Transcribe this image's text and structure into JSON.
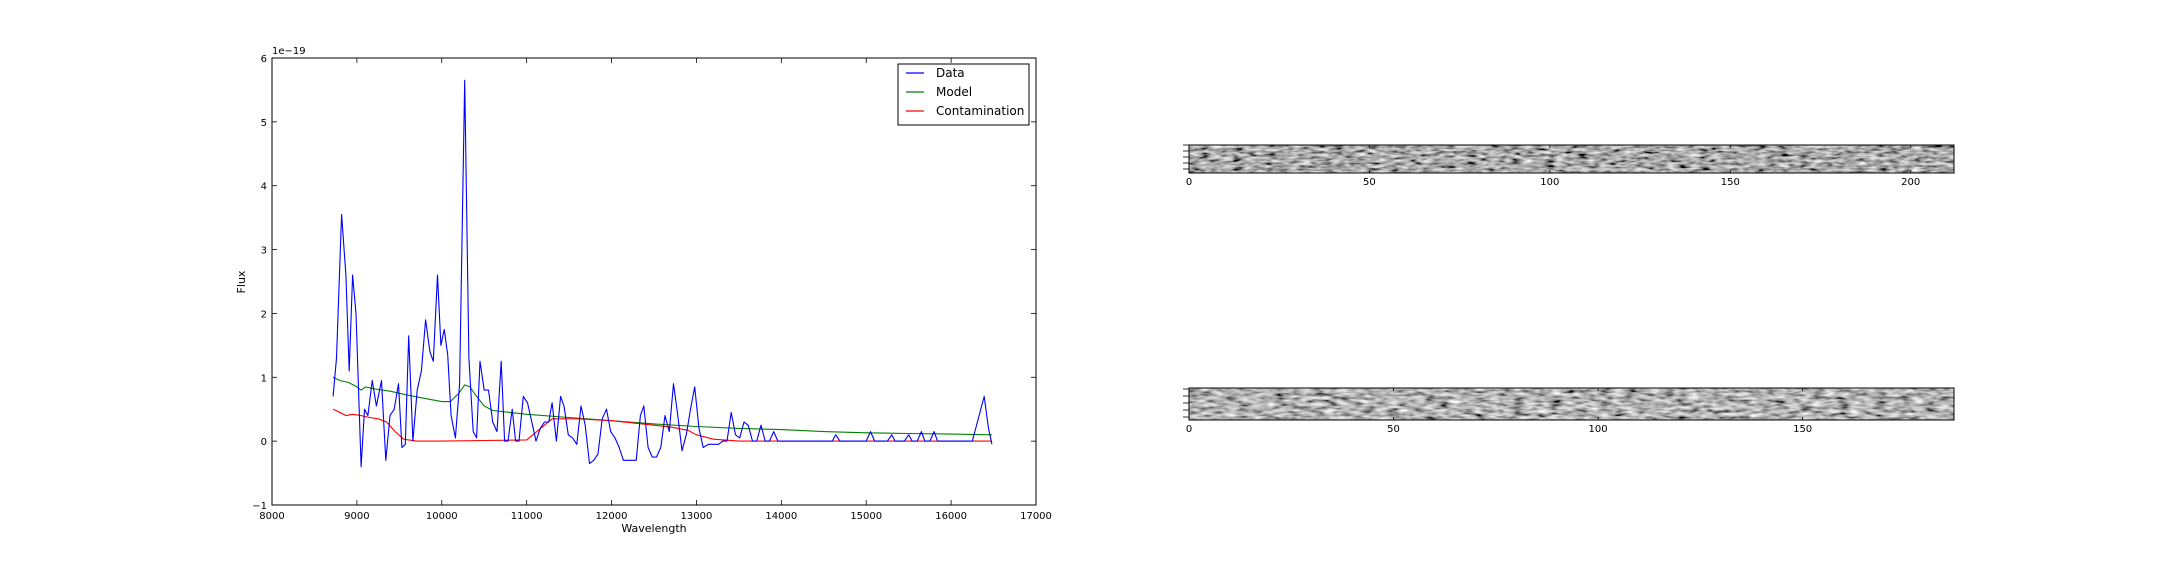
{
  "chart_data": [
    {
      "type": "line",
      "title": "",
      "xlabel": "Wavelength",
      "ylabel": "Flux",
      "offset_text": "1e−19",
      "xlim": [
        8000,
        17000
      ],
      "ylim": [
        -1,
        6
      ],
      "xticks": [
        8000,
        9000,
        10000,
        11000,
        12000,
        13000,
        14000,
        15000,
        16000,
        17000
      ],
      "yticks": [
        -1,
        0,
        1,
        2,
        3,
        4,
        5,
        6
      ],
      "legend_position": "top-right",
      "series": [
        {
          "name": "Data",
          "color": "#0000ff",
          "points": [
            [
              8720,
              0.7
            ],
            [
              8760,
              1.3
            ],
            [
              8820,
              3.55
            ],
            [
              8870,
              2.6
            ],
            [
              8910,
              1.1
            ],
            [
              8950,
              2.6
            ],
            [
              8990,
              2.0
            ],
            [
              9050,
              -0.4
            ],
            [
              9090,
              0.5
            ],
            [
              9130,
              0.4
            ],
            [
              9180,
              0.95
            ],
            [
              9230,
              0.55
            ],
            [
              9290,
              0.95
            ],
            [
              9340,
              -0.3
            ],
            [
              9390,
              0.4
            ],
            [
              9440,
              0.5
            ],
            [
              9490,
              0.9
            ],
            [
              9530,
              -0.1
            ],
            [
              9570,
              -0.05
            ],
            [
              9610,
              1.65
            ],
            [
              9660,
              0.0
            ],
            [
              9710,
              0.8
            ],
            [
              9760,
              1.1
            ],
            [
              9810,
              1.9
            ],
            [
              9860,
              1.4
            ],
            [
              9900,
              1.25
            ],
            [
              9950,
              2.6
            ],
            [
              9990,
              1.5
            ],
            [
              10030,
              1.75
            ],
            [
              10070,
              1.35
            ],
            [
              10110,
              0.4
            ],
            [
              10160,
              0.05
            ],
            [
              10210,
              0.9
            ],
            [
              10270,
              5.65
            ],
            [
              10320,
              1.3
            ],
            [
              10370,
              0.15
            ],
            [
              10410,
              0.05
            ],
            [
              10450,
              1.25
            ],
            [
              10500,
              0.8
            ],
            [
              10550,
              0.8
            ],
            [
              10600,
              0.3
            ],
            [
              10650,
              0.15
            ],
            [
              10700,
              1.25
            ],
            [
              10740,
              0.0
            ],
            [
              10780,
              0.0
            ],
            [
              10830,
              0.5
            ],
            [
              10870,
              0.0
            ],
            [
              10910,
              0.0
            ],
            [
              10960,
              0.7
            ],
            [
              11010,
              0.6
            ],
            [
              11060,
              0.3
            ],
            [
              11110,
              0.0
            ],
            [
              11160,
              0.2
            ],
            [
              11210,
              0.3
            ],
            [
              11260,
              0.3
            ],
            [
              11300,
              0.6
            ],
            [
              11350,
              0.0
            ],
            [
              11400,
              0.7
            ],
            [
              11440,
              0.55
            ],
            [
              11490,
              0.1
            ],
            [
              11540,
              0.05
            ],
            [
              11590,
              -0.05
            ],
            [
              11640,
              0.55
            ],
            [
              11690,
              0.25
            ],
            [
              11740,
              -0.35
            ],
            [
              11790,
              -0.3
            ],
            [
              11840,
              -0.2
            ],
            [
              11890,
              0.35
            ],
            [
              11940,
              0.5
            ],
            [
              11990,
              0.15
            ],
            [
              12040,
              0.05
            ],
            [
              12090,
              -0.1
            ],
            [
              12140,
              -0.3
            ],
            [
              12190,
              -0.3
            ],
            [
              12240,
              -0.3
            ],
            [
              12290,
              -0.3
            ],
            [
              12340,
              0.4
            ],
            [
              12380,
              0.55
            ],
            [
              12430,
              -0.1
            ],
            [
              12480,
              -0.25
            ],
            [
              12530,
              -0.25
            ],
            [
              12580,
              -0.1
            ],
            [
              12630,
              0.4
            ],
            [
              12680,
              0.15
            ],
            [
              12730,
              0.9
            ],
            [
              12780,
              0.4
            ],
            [
              12830,
              -0.15
            ],
            [
              12880,
              0.1
            ],
            [
              12930,
              0.5
            ],
            [
              12980,
              0.85
            ],
            [
              13030,
              0.2
            ],
            [
              13080,
              -0.1
            ],
            [
              13140,
              -0.05
            ],
            [
              13200,
              -0.05
            ],
            [
              13260,
              -0.05
            ],
            [
              13310,
              0.0
            ],
            [
              13360,
              0.0
            ],
            [
              13410,
              0.45
            ],
            [
              13460,
              0.1
            ],
            [
              13510,
              0.05
            ],
            [
              13560,
              0.3
            ],
            [
              13610,
              0.25
            ],
            [
              13660,
              0.0
            ],
            [
              13710,
              0.0
            ],
            [
              13760,
              0.25
            ],
            [
              13810,
              0.0
            ],
            [
              13860,
              0.0
            ],
            [
              13910,
              0.15
            ],
            [
              13960,
              0.0
            ],
            [
              14000,
              0.0
            ],
            [
              14600,
              0.0
            ],
            [
              14640,
              0.1
            ],
            [
              14690,
              0.0
            ],
            [
              15000,
              0.0
            ],
            [
              15050,
              0.15
            ],
            [
              15100,
              0.0
            ],
            [
              15250,
              0.0
            ],
            [
              15300,
              0.1
            ],
            [
              15340,
              0.0
            ],
            [
              15450,
              0.0
            ],
            [
              15500,
              0.1
            ],
            [
              15540,
              0.0
            ],
            [
              15600,
              0.0
            ],
            [
              15650,
              0.15
            ],
            [
              15690,
              0.0
            ],
            [
              15750,
              0.0
            ],
            [
              15800,
              0.15
            ],
            [
              15840,
              0.0
            ],
            [
              16000,
              0.0
            ],
            [
              16250,
              0.0
            ],
            [
              16330,
              0.4
            ],
            [
              16390,
              0.7
            ],
            [
              16440,
              0.2
            ],
            [
              16480,
              -0.05
            ]
          ]
        },
        {
          "name": "Model",
          "color": "#008000",
          "points": [
            [
              8720,
              1.0
            ],
            [
              8800,
              0.95
            ],
            [
              8900,
              0.92
            ],
            [
              9000,
              0.85
            ],
            [
              9050,
              0.8
            ],
            [
              9100,
              0.85
            ],
            [
              9200,
              0.82
            ],
            [
              9400,
              0.78
            ],
            [
              9600,
              0.72
            ],
            [
              9800,
              0.67
            ],
            [
              10000,
              0.62
            ],
            [
              10100,
              0.62
            ],
            [
              10200,
              0.75
            ],
            [
              10270,
              0.88
            ],
            [
              10330,
              0.85
            ],
            [
              10400,
              0.72
            ],
            [
              10500,
              0.55
            ],
            [
              10600,
              0.48
            ],
            [
              10800,
              0.45
            ],
            [
              11000,
              0.42
            ],
            [
              11500,
              0.37
            ],
            [
              12000,
              0.32
            ],
            [
              12500,
              0.27
            ],
            [
              13000,
              0.23
            ],
            [
              13500,
              0.2
            ],
            [
              14000,
              0.18
            ],
            [
              14500,
              0.15
            ],
            [
              15000,
              0.13
            ],
            [
              15500,
              0.12
            ],
            [
              16000,
              0.11
            ],
            [
              16480,
              0.1
            ]
          ]
        },
        {
          "name": "Contamination",
          "color": "#ff0000",
          "points": [
            [
              8720,
              0.5
            ],
            [
              8800,
              0.45
            ],
            [
              8870,
              0.4
            ],
            [
              8950,
              0.42
            ],
            [
              9050,
              0.4
            ],
            [
              9150,
              0.37
            ],
            [
              9250,
              0.35
            ],
            [
              9350,
              0.3
            ],
            [
              9450,
              0.15
            ],
            [
              9550,
              0.03
            ],
            [
              9700,
              0.0
            ],
            [
              10000,
              0.0
            ],
            [
              10500,
              0.01
            ],
            [
              11000,
              0.02
            ],
            [
              11300,
              0.35
            ],
            [
              11600,
              0.35
            ],
            [
              12000,
              0.32
            ],
            [
              12500,
              0.25
            ],
            [
              12700,
              0.22
            ],
            [
              12900,
              0.17
            ],
            [
              13000,
              0.1
            ],
            [
              13200,
              0.03
            ],
            [
              13500,
              0.0
            ],
            [
              14000,
              0.0
            ],
            [
              15000,
              0.0
            ],
            [
              16000,
              0.0
            ],
            [
              16480,
              0.0
            ]
          ]
        }
      ]
    },
    {
      "type": "heatmap",
      "title": "",
      "colormap": "gray",
      "xlim": [
        0,
        212
      ],
      "xticks": [
        0,
        50,
        100,
        150,
        200
      ]
    },
    {
      "type": "heatmap",
      "title": "",
      "colormap": "gray",
      "xlim": [
        0,
        187
      ],
      "xticks": [
        0,
        50,
        100,
        150
      ]
    }
  ]
}
